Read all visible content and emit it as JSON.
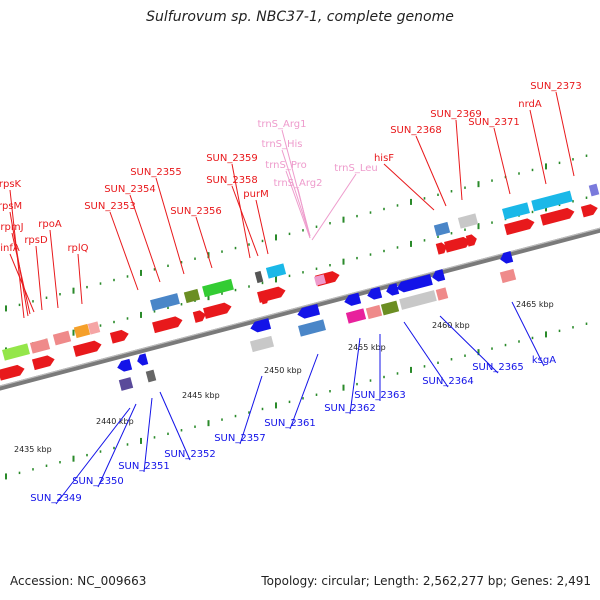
{
  "map": {
    "title": "Sulfurovum sp. NBC37-1, complete genome",
    "accession": "Accession: NC_009663",
    "topology": "Topology: circular; Length: 2,562,277 bp; Genes: 2,491",
    "colors": {
      "forward": "#e8191c",
      "reverse": "#1313e8",
      "trna": "#ee9bcc",
      "backbone": "#7a7a7a",
      "tick": "#1a7a1a",
      "dot": "#2a8a2a"
    }
  },
  "scale": [
    {
      "label": "2435 kbp"
    },
    {
      "label": "2440 kbp"
    },
    {
      "label": "2445 kbp"
    },
    {
      "label": "2450 kbp"
    },
    {
      "label": "2455 kbp"
    },
    {
      "label": "2460 kbp"
    },
    {
      "label": "2465 kbp"
    }
  ],
  "forward_labels": [
    {
      "text": "rpsK"
    },
    {
      "text": "rpsM"
    },
    {
      "text": "rpmJ"
    },
    {
      "text": "infA"
    },
    {
      "text": "rpsD"
    },
    {
      "text": "rpoA"
    },
    {
      "text": "rplQ"
    },
    {
      "text": "SUN_2353"
    },
    {
      "text": "SUN_2354"
    },
    {
      "text": "SUN_2355"
    },
    {
      "text": "SUN_2356"
    },
    {
      "text": "SUN_2358"
    },
    {
      "text": "SUN_2359"
    },
    {
      "text": "purM"
    },
    {
      "text": "hisF"
    },
    {
      "text": "SUN_2368"
    },
    {
      "text": "SUN_2369"
    },
    {
      "text": "SUN_2371"
    },
    {
      "text": "nrdA"
    },
    {
      "text": "SUN_2373"
    }
  ],
  "trna_labels": [
    {
      "text": "trnS_Arg1"
    },
    {
      "text": "trnS_His"
    },
    {
      "text": "trnS_Pro"
    },
    {
      "text": "trnS_Arg2"
    },
    {
      "text": "trnS_Leu"
    }
  ],
  "reverse_labels": [
    {
      "text": "SUN_2349"
    },
    {
      "text": "SUN_2350"
    },
    {
      "text": "SUN_2351"
    },
    {
      "text": "SUN_2352"
    },
    {
      "text": "SUN_2357"
    },
    {
      "text": "SUN_2361"
    },
    {
      "text": "SUN_2362"
    },
    {
      "text": "SUN_2363"
    },
    {
      "text": "SUN_2364"
    },
    {
      "text": "SUN_2365"
    },
    {
      "text": "ksgA"
    }
  ]
}
